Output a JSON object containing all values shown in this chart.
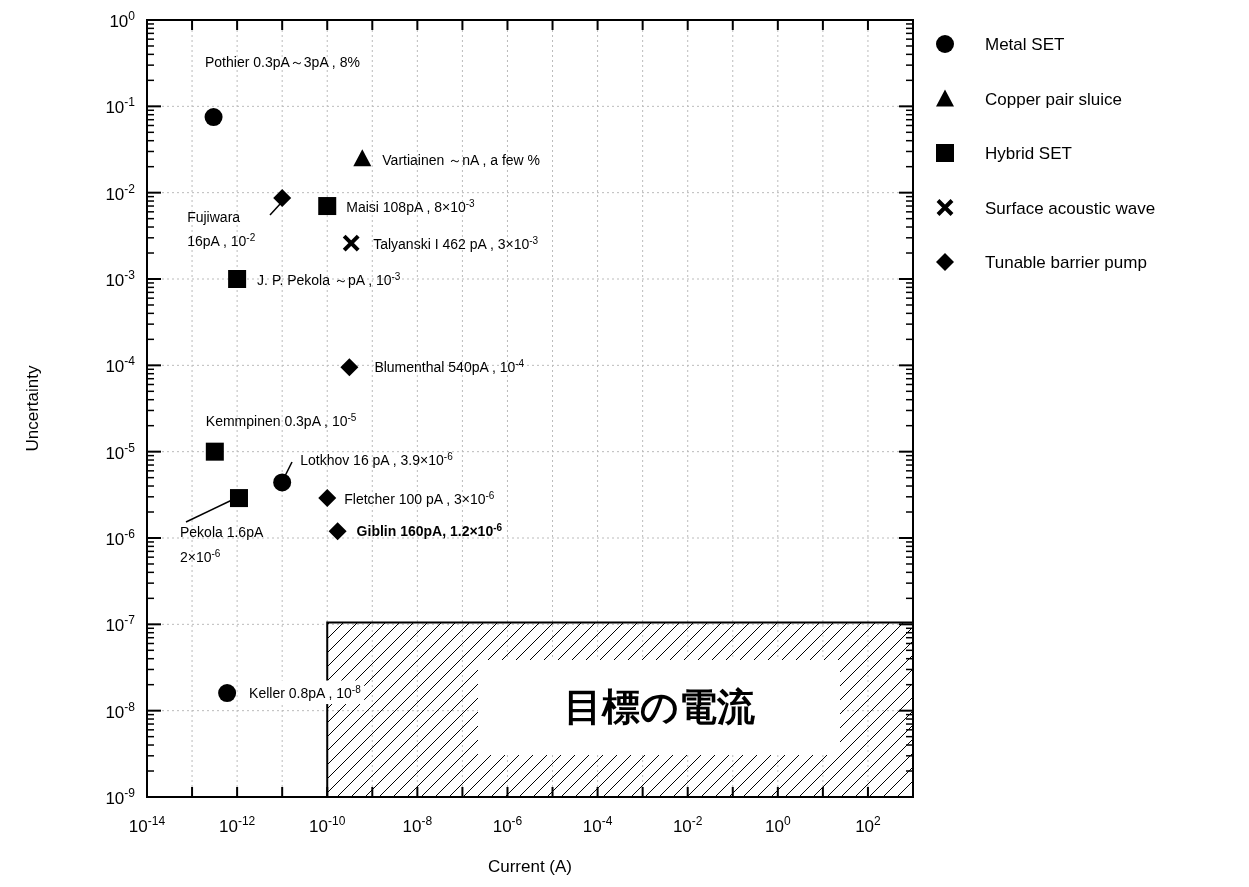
{
  "chart_data": {
    "type": "scatter",
    "xlabel": "Current (A)",
    "ylabel": "Uncertainty",
    "log": "xy",
    "grid": true,
    "legend": "right",
    "xlim": [
      1e-14,
      1000
    ],
    "ylim": [
      1e-09,
      1
    ],
    "xticks": [
      {
        "value": 1e-14,
        "label": "10$^{-14}$"
      },
      {
        "value": 1e-13,
        "label": null
      },
      {
        "value": 1e-12,
        "label": "10$^{-12}$"
      },
      {
        "value": 1e-11,
        "label": null
      },
      {
        "value": 1e-10,
        "label": "10$^{-10}$"
      },
      {
        "value": 1e-09,
        "label": null
      },
      {
        "value": 1e-08,
        "label": "10$^{-8}$"
      },
      {
        "value": 1e-07,
        "label": null
      },
      {
        "value": 1e-06,
        "label": "10$^{-6}$"
      },
      {
        "value": 1e-05,
        "label": null
      },
      {
        "value": 0.0001,
        "label": "10$^{-4}$"
      },
      {
        "value": 0.001,
        "label": null
      },
      {
        "value": 0.01,
        "label": "10$^{-2}$"
      },
      {
        "value": 0.1,
        "label": null
      },
      {
        "value": 1,
        "label": "10$^{0}$"
      },
      {
        "value": 10,
        "label": null
      },
      {
        "value": 100,
        "label": "10$^{2}$"
      }
    ],
    "yticks": [
      {
        "value": 1e-09,
        "label": "10$^{-9}$"
      },
      {
        "value": 1e-08,
        "label": "10$^{-8}$"
      },
      {
        "value": 1e-07,
        "label": "10$^{-7}$"
      },
      {
        "value": 1e-06,
        "label": "10$^{-6}$"
      },
      {
        "value": 1e-05,
        "label": "10$^{-5}$"
      },
      {
        "value": 0.0001,
        "label": "10$^{-4}$"
      },
      {
        "value": 0.001,
        "label": "10$^{-3}$"
      },
      {
        "value": 0.01,
        "label": "10$^{-2}$"
      },
      {
        "value": 0.1,
        "label": "10$^{-1}$"
      },
      {
        "value": 1,
        "label": "10$^{0}$"
      }
    ],
    "series": [
      {
        "name": "Metal SET",
        "color": "#000000",
        "marker": "circle",
        "x": [
          3e-13,
          1e-11,
          6e-13
        ],
        "values": [
          0.075,
          4.4e-06,
          1.6e-08
        ]
      },
      {
        "name": "Copper pair sluice",
        "color": "#000000",
        "marker": "triangle",
        "x": [
          6e-10
        ],
        "values": [
          0.025
        ]
      },
      {
        "name": "Hybrid SET",
        "color": "#000000",
        "marker": "square",
        "x": [
          1e-10,
          1e-12,
          3.2e-13,
          1.1e-12
        ],
        "values": [
          0.007,
          0.001,
          1e-05,
          2.9e-06
        ]
      },
      {
        "name": "Surface acoustic wave",
        "color": "#000000",
        "marker": "cross",
        "x": [
          3.4e-10
        ],
        "values": [
          0.0026
        ]
      },
      {
        "name": "Tunable barrier pump",
        "color": "#000000",
        "marker": "diamond",
        "x": [
          1e-11,
          3.1e-10,
          1e-10,
          1.7e-10
        ],
        "values": [
          0.0087,
          9.5e-05,
          2.9e-06,
          1.2e-06
        ]
      },
      {
        "type": "area",
        "color": "#000000",
        "x": [
          1e-10,
          1000
        ],
        "values": [
          1.05e-07,
          1.05e-07
        ]
      }
    ],
    "annotations": [
      "Pothier  0.3pA～3pA , 8%",
      {
        "text": "Vartiainen  ～nA , a few %",
        "x": 6e-10,
        "y": 0.025
      },
      {
        "text": "Maisi  108pA , 8×10$^{-3}$",
        "x": 1e-10,
        "y": 0.007
      },
      {
        "text": "Talyanski I  462 pA , 3×10$^{-3}$",
        "x": 3.4e-10,
        "y": 0.0026
      },
      {
        "text": "J. P. Pekola  ～pA , 10$^{-3}$",
        "x": 1e-12,
        "y": 0.001
      },
      {
        "text": "Fujiwara\n16pA , 10$^{-2}$",
        "x": 1e-11,
        "y": 0.0087
      },
      {
        "text": "Blumenthal 540pA , 10$^{-4}$",
        "x": 3.1e-10,
        "y": 9.5e-05
      },
      {
        "text": "Kemmpinen   0.3pA , 10$^{-5}$",
        "x": 3.2e-13,
        "y": 1e-05
      },
      {
        "text": "Lotkhov  16 pA , 3.9×10$^{-6}$",
        "x": 1e-11,
        "y": 4.4e-06
      },
      {
        "text": "Fletcher  100 pA , 3×10$^{-6}$",
        "x": 1e-10,
        "y": 2.9e-06
      },
      {
        "text": "Giblin 160pA, 1.2×10$^{-6}$",
        "x": 1.7e-10,
        "y": 1.2e-06
      },
      {
        "text": "Pekola  1.6pA\n2×10$^{-6}$",
        "x": 1.1e-12,
        "y": 2.9e-06
      },
      {
        "text": "Keller  0.8pA , 10$^{-8}$",
        "x": 6e-13,
        "y": 1.6e-08
      },
      "目標の電流"
    ]
  }
}
